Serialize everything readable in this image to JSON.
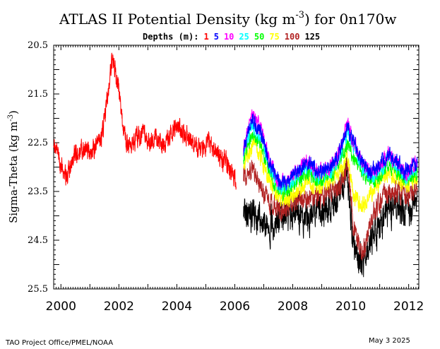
{
  "chart_data": {
    "type": "line",
    "title": "ATLAS II Potential Density (kg m",
    "title_sup": "-3",
    "title_tail": ") for 0n170w",
    "ylabel": "Sigma-Theta (kg m",
    "ylabel_sup": "-3",
    "ylabel_tail": ")",
    "y_inverted": true,
    "ylim": [
      20.5,
      25.5
    ],
    "y_ticks": [
      "20.5",
      "21.5",
      "22.5",
      "23.5",
      "24.5",
      "25.5"
    ],
    "xlim": [
      1999.75,
      2012.35
    ],
    "x_ticks": [
      "2000",
      "2002",
      "2004",
      "2006",
      "2008",
      "2010",
      "2012"
    ],
    "legend": {
      "prefix": "Depths (m):",
      "entries": [
        {
          "label": "1",
          "color": "#ff0000"
        },
        {
          "label": "5",
          "color": "#0000ff"
        },
        {
          "label": "10",
          "color": "#ff00ff"
        },
        {
          "label": "25",
          "color": "#00ffff"
        },
        {
          "label": "50",
          "color": "#00ff00"
        },
        {
          "label": "75",
          "color": "#ffff00"
        },
        {
          "label": "100",
          "color": "#b22222"
        },
        {
          "label": "125",
          "color": "#000000"
        }
      ]
    },
    "series": [
      {
        "name": "1",
        "color": "#ff0000",
        "start": 1999.75,
        "end": 2006.05,
        "x": [
          1999.75,
          2000.0,
          2000.2,
          2000.4,
          2000.6,
          2000.8,
          2001.0,
          2001.2,
          2001.4,
          2001.6,
          2001.75,
          2001.85,
          2002.0,
          2002.2,
          2002.4,
          2002.6,
          2002.8,
          2003.0,
          2003.2,
          2003.4,
          2003.6,
          2003.8,
          2004.0,
          2004.2,
          2004.4,
          2004.5,
          2004.7,
          2004.9,
          2005.1,
          2005.3,
          2005.5,
          2005.7,
          2005.9,
          2006.05
        ],
        "y": [
          22.4,
          23.0,
          23.2,
          22.8,
          22.7,
          22.6,
          22.7,
          22.6,
          22.4,
          21.6,
          20.8,
          20.9,
          21.4,
          22.4,
          22.6,
          22.4,
          22.3,
          22.5,
          22.4,
          22.5,
          22.6,
          22.3,
          22.1,
          22.3,
          22.4,
          22.4,
          22.6,
          22.7,
          22.5,
          22.7,
          22.8,
          22.9,
          23.1,
          23.3
        ],
        "noise": 0.35
      },
      {
        "name": "5",
        "color": "#0000ff",
        "start": 2006.3,
        "end": 2012.3,
        "x": [
          2006.3,
          2006.6,
          2006.9,
          2007.2,
          2007.5,
          2007.8,
          2008.1,
          2008.5,
          2008.9,
          2009.3,
          2009.6,
          2009.9,
          2010.1,
          2010.4,
          2010.7,
          2011.0,
          2011.3,
          2011.6,
          2011.9,
          2012.1,
          2012.3
        ],
        "y": [
          22.6,
          22.0,
          22.3,
          22.9,
          23.3,
          23.3,
          23.1,
          22.9,
          23.1,
          23.0,
          22.7,
          22.2,
          22.5,
          22.9,
          23.1,
          23.0,
          22.7,
          22.9,
          23.1,
          23.0,
          22.9
        ],
        "noise": 0.25
      },
      {
        "name": "10",
        "color": "#ff00ff",
        "start": 2006.3,
        "end": 2012.3,
        "x": [
          2006.3,
          2006.6,
          2006.9,
          2007.2,
          2007.5,
          2007.8,
          2008.1,
          2008.5,
          2008.9,
          2009.3,
          2009.6,
          2009.9,
          2010.1,
          2010.4,
          2010.7,
          2011.0,
          2011.3,
          2011.6,
          2011.9,
          2012.1,
          2012.3
        ],
        "y": [
          22.6,
          21.9,
          22.2,
          22.9,
          23.3,
          23.3,
          23.1,
          22.9,
          23.1,
          23.0,
          22.7,
          22.1,
          22.5,
          22.9,
          23.1,
          23.0,
          22.7,
          22.9,
          23.1,
          23.0,
          22.9
        ],
        "noise": 0.25
      },
      {
        "name": "25",
        "color": "#00ffff",
        "start": 2006.3,
        "end": 2012.3,
        "x": [
          2006.3,
          2006.6,
          2006.9,
          2007.2,
          2007.5,
          2007.8,
          2008.1,
          2008.5,
          2008.9,
          2009.3,
          2009.6,
          2009.9,
          2010.1,
          2010.4,
          2010.7,
          2011.0,
          2011.3,
          2011.6,
          2011.9,
          2012.1,
          2012.3
        ],
        "y": [
          22.7,
          22.1,
          22.4,
          23.0,
          23.4,
          23.4,
          23.2,
          23.0,
          23.2,
          23.1,
          22.8,
          22.3,
          22.6,
          23.0,
          23.2,
          23.1,
          22.8,
          23.0,
          23.2,
          23.1,
          23.0
        ],
        "noise": 0.25
      },
      {
        "name": "50",
        "color": "#00ff00",
        "start": 2006.3,
        "end": 2012.3,
        "x": [
          2006.3,
          2006.6,
          2006.9,
          2007.2,
          2007.5,
          2007.8,
          2008.1,
          2008.5,
          2008.9,
          2009.3,
          2009.6,
          2009.9,
          2010.1,
          2010.4,
          2010.7,
          2011.0,
          2011.3,
          2011.6,
          2011.9,
          2012.1,
          2012.3
        ],
        "y": [
          22.8,
          22.3,
          22.5,
          23.1,
          23.5,
          23.5,
          23.3,
          23.1,
          23.3,
          23.2,
          22.9,
          22.5,
          22.8,
          23.1,
          23.3,
          23.2,
          22.9,
          23.1,
          23.3,
          23.2,
          23.1
        ],
        "noise": 0.25
      },
      {
        "name": "75",
        "color": "#ffff00",
        "start": 2006.3,
        "end": 2012.3,
        "x": [
          2006.3,
          2006.6,
          2006.9,
          2007.2,
          2007.5,
          2007.8,
          2008.1,
          2008.5,
          2008.9,
          2009.3,
          2009.6,
          2009.9,
          2010.1,
          2010.4,
          2010.7,
          2011.0,
          2011.3,
          2011.6,
          2011.9,
          2012.1,
          2012.3
        ],
        "y": [
          22.9,
          22.5,
          22.8,
          23.3,
          23.6,
          23.7,
          23.5,
          23.3,
          23.4,
          23.3,
          23.1,
          22.8,
          23.6,
          23.8,
          23.5,
          23.3,
          23.1,
          23.2,
          23.4,
          23.3,
          23.2
        ],
        "noise": 0.3
      },
      {
        "name": "100",
        "color": "#b22222",
        "start": 2006.3,
        "end": 2012.3,
        "x": [
          2006.3,
          2006.6,
          2006.9,
          2007.2,
          2007.5,
          2007.8,
          2008.1,
          2008.5,
          2008.9,
          2009.3,
          2009.6,
          2009.9,
          2010.1,
          2010.4,
          2010.7,
          2011.0,
          2011.3,
          2011.6,
          2011.9,
          2012.1,
          2012.3
        ],
        "y": [
          23.2,
          23.0,
          23.4,
          23.7,
          23.9,
          23.8,
          23.7,
          23.6,
          23.6,
          23.5,
          23.4,
          23.0,
          24.3,
          24.8,
          24.1,
          23.7,
          23.5,
          23.5,
          23.6,
          23.5,
          23.4
        ],
        "noise": 0.35
      },
      {
        "name": "125",
        "color": "#000000",
        "start": 2006.3,
        "end": 2012.3,
        "x": [
          2006.3,
          2006.6,
          2006.9,
          2007.2,
          2007.5,
          2007.8,
          2008.1,
          2008.5,
          2008.9,
          2009.3,
          2009.6,
          2009.9,
          2010.1,
          2010.4,
          2010.7,
          2011.0,
          2011.3,
          2011.6,
          2011.9,
          2012.1,
          2012.3
        ],
        "y": [
          23.9,
          24.0,
          24.1,
          24.2,
          24.1,
          23.9,
          24.0,
          24.0,
          23.9,
          23.8,
          23.6,
          23.1,
          24.7,
          25.0,
          24.5,
          24.2,
          23.9,
          23.8,
          23.9,
          23.9,
          23.7
        ],
        "noise": 0.55
      }
    ]
  },
  "footer": {
    "credit": "TAO Project Office/PMEL/NOAA",
    "date": "May  3 2025"
  }
}
